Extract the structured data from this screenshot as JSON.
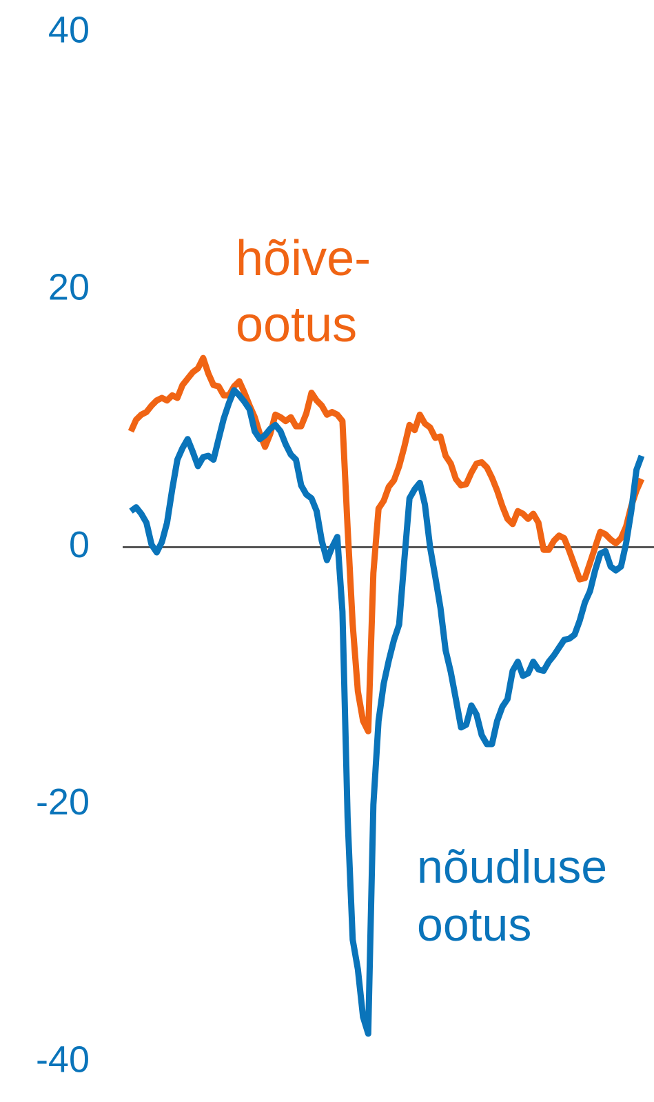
{
  "chart_data": {
    "type": "line",
    "categories": [
      null,
      null,
      null,
      null,
      null,
      null,
      null,
      null,
      null,
      null,
      null,
      null,
      null,
      null,
      null,
      null,
      null,
      null,
      null,
      null,
      null,
      null,
      null,
      null,
      null,
      null,
      null,
      null,
      null,
      null,
      null,
      null,
      null,
      null,
      null,
      null,
      null,
      null,
      null,
      null,
      null,
      null,
      null,
      null,
      null,
      null,
      null,
      null,
      null,
      null,
      null,
      null,
      null,
      null,
      null,
      null,
      null,
      null,
      null,
      null,
      null,
      null,
      null,
      null,
      null,
      null,
      null,
      null,
      null,
      null,
      null,
      null,
      null,
      null,
      null,
      null,
      null,
      null,
      null,
      null,
      null,
      null,
      null,
      null,
      null,
      null,
      null,
      null,
      null,
      null,
      null,
      null,
      null,
      null,
      null,
      null,
      null,
      null,
      null,
      null
    ],
    "series": [
      {
        "color": "#f06414",
        "values": [
          9.0,
          9.9,
          10.3,
          10.5,
          11.0,
          11.4,
          11.6,
          11.4,
          11.8,
          11.6,
          12.6,
          13.1,
          13.6,
          13.9,
          14.7,
          13.5,
          12.6,
          12.5,
          11.8,
          11.8,
          12.5,
          12.9,
          12.0,
          11.0,
          10.1,
          8.8,
          7.8,
          8.8,
          10.3,
          10.1,
          9.8,
          10.1,
          9.4,
          9.4,
          10.4,
          12.0,
          11.4,
          11.0,
          10.3,
          10.5,
          10.3,
          9.8,
          1.5,
          -6.0,
          -11.2,
          -13.5,
          -14.3,
          -2.0,
          3.0,
          3.6,
          4.7,
          5.2,
          6.3,
          7.8,
          9.5,
          9.1,
          10.3,
          9.6,
          9.3,
          8.5,
          8.6,
          7.1,
          6.5,
          5.3,
          4.8,
          4.9,
          5.8,
          6.5,
          6.6,
          6.2,
          5.4,
          4.4,
          3.2,
          2.2,
          1.8,
          2.8,
          2.6,
          2.2,
          2.6,
          1.9,
          -0.2,
          -0.2,
          0.5,
          0.9,
          0.7,
          -0.3,
          -1.4,
          -2.5,
          -2.4,
          -1.2,
          0.0,
          1.2,
          1.0,
          0.6,
          0.3,
          0.7,
          1.6,
          3.2,
          4.4,
          5.3
        ]
      },
      {
        "color": "#0a74ba",
        "values": [
          2.8,
          3.1,
          2.6,
          1.9,
          0.2,
          -0.4,
          0.4,
          1.9,
          4.5,
          6.8,
          7.7,
          8.4,
          7.4,
          6.3,
          7.0,
          7.1,
          6.8,
          8.4,
          10.0,
          11.2,
          12.2,
          11.8,
          11.3,
          10.7,
          9.0,
          8.4,
          8.7,
          9.2,
          9.5,
          9.0,
          8.0,
          7.2,
          6.8,
          4.8,
          4.1,
          3.8,
          2.8,
          0.5,
          -1.0,
          0.0,
          0.8,
          -5.0,
          -21.0,
          -30.5,
          -32.8,
          -36.5,
          -37.8,
          -20.0,
          -13.5,
          -10.6,
          -8.8,
          -7.2,
          -6.0,
          -1.0,
          3.8,
          4.5,
          5.0,
          3.3,
          0.0,
          -2.3,
          -4.7,
          -8.0,
          -9.7,
          -11.8,
          -14.0,
          -13.8,
          -12.3,
          -13.0,
          -14.6,
          -15.3,
          -15.3,
          -13.5,
          -12.4,
          -11.8,
          -9.6,
          -8.9,
          -10.0,
          -9.8,
          -8.9,
          -9.5,
          -9.6,
          -8.9,
          -8.4,
          -7.8,
          -7.2,
          -7.1,
          -6.8,
          -5.7,
          -4.3,
          -3.4,
          -1.8,
          -0.5,
          -0.3,
          -1.5,
          -1.8,
          -1.5,
          0.3,
          2.8,
          6.0,
          7.1
        ]
      }
    ],
    "annotations": [
      {
        "lines": [
          "hõive-",
          "ootus"
        ],
        "color": "#f06414"
      },
      {
        "lines": [
          "nõudluse",
          "ootus"
        ],
        "color": "#0a74ba"
      }
    ],
    "ylim": [
      -40,
      40
    ],
    "yticks": [
      40,
      20,
      0,
      -20,
      -40
    ],
    "tick_color": "#0a74ba"
  }
}
